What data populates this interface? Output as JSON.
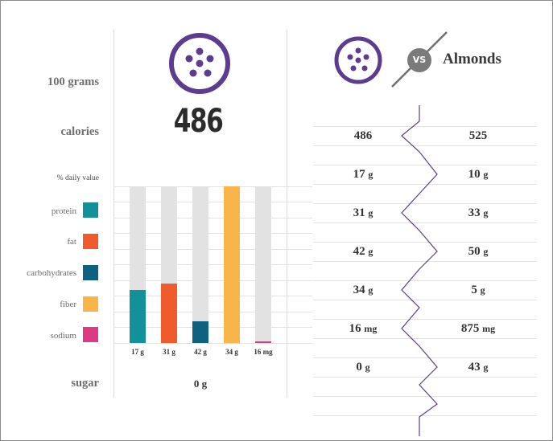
{
  "header": {
    "serving_label": "100 grams",
    "calories_label": "calories",
    "calories_value": "486",
    "daily_value_label": "% daily value",
    "vs_label": "VS",
    "compare_name": "Almonds"
  },
  "legend": [
    {
      "label": "protein",
      "color": "#13919b"
    },
    {
      "label": "fat",
      "color": "#ef5b2d"
    },
    {
      "label": "carbohydrates",
      "color": "#0e6280"
    },
    {
      "label": "fiber",
      "color": "#f7b54a"
    },
    {
      "label": "sodium",
      "color": "#dc3a83"
    }
  ],
  "chart_data": {
    "type": "bar",
    "categories": [
      "protein",
      "fat",
      "carbohydrates",
      "fiber",
      "sodium"
    ],
    "values": [
      34,
      38,
      14,
      100,
      1
    ],
    "value_labels": [
      "17 g",
      "31 g",
      "42 g",
      "34 g",
      "16 mg"
    ],
    "ylim": [
      0,
      100
    ]
  },
  "sugar": {
    "label": "sugar",
    "value": "0 g"
  },
  "comparison": {
    "rows": [
      {
        "left": "486",
        "left_unit": "",
        "right": "525",
        "right_unit": ""
      },
      {
        "left": "17",
        "left_unit": "g",
        "right": "10",
        "right_unit": "g"
      },
      {
        "left": "31",
        "left_unit": "g",
        "right": "33",
        "right_unit": "g"
      },
      {
        "left": "42",
        "left_unit": "g",
        "right": "50",
        "right_unit": "g"
      },
      {
        "left": "34",
        "left_unit": "g",
        "right": "5",
        "right_unit": "g"
      },
      {
        "left": "16",
        "left_unit": "mg",
        "right": "875",
        "right_unit": "mg"
      },
      {
        "left": "0",
        "left_unit": "g",
        "right": "43",
        "right_unit": "g"
      }
    ]
  },
  "colors": {
    "accent": "#5b3c8f",
    "vs_badge": "#7a7a7a",
    "bar_background": "#e2e2e2"
  }
}
